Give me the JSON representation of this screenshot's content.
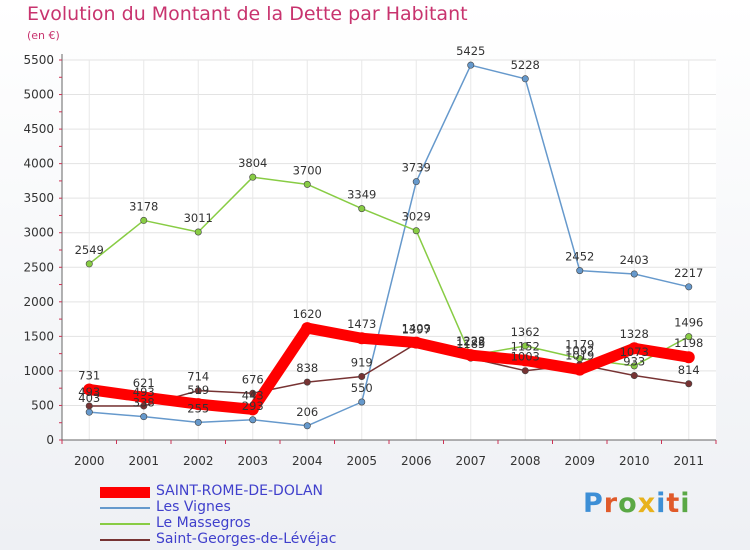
{
  "header": {
    "title": "Evolution du Montant de la Dette par Habitant",
    "subtitle": "(en €)"
  },
  "chart_data": {
    "type": "line",
    "title": "Evolution du Montant de la Dette par Habitant",
    "subtitle": "(en €)",
    "categories": [
      "2000",
      "2001",
      "2002",
      "2003",
      "2004",
      "2005",
      "2006",
      "2007",
      "2008",
      "2009",
      "2010",
      "2011"
    ],
    "ylim": [
      0,
      5500
    ],
    "yticks": [
      0,
      500,
      1000,
      1500,
      2000,
      2500,
      3000,
      3500,
      4000,
      4500,
      5000,
      5500
    ],
    "grid": true,
    "legend_position": "bottom-left",
    "series": [
      {
        "name": "SAINT-ROME-DE-DOLAN",
        "color": "#ff0000",
        "values": [
          731,
          621,
          519,
          443,
          1620,
          1473,
          1409,
          1228,
          1152,
          1019,
          1328,
          1198
        ]
      },
      {
        "name": "Les Vignes",
        "color": "#6699cc",
        "values": [
          403,
          338,
          255,
          293,
          206,
          550,
          3739,
          5425,
          5228,
          2452,
          2403,
          2217
        ]
      },
      {
        "name": "Le Massegros",
        "color": "#88cc44",
        "values": [
          2549,
          3178,
          3011,
          3804,
          3700,
          3349,
          3029,
          1222,
          1362,
          1179,
          1073,
          1496
        ]
      },
      {
        "name": "Saint-Georges-de-Lévéjac",
        "color": "#773333",
        "values": [
          493,
          493,
          714,
          676,
          838,
          919,
          1397,
          1185,
          1003,
          1092,
          933,
          814
        ]
      }
    ]
  },
  "legend": {
    "items": [
      {
        "label": "SAINT-ROME-DE-DOLAN"
      },
      {
        "label": "Les Vignes"
      },
      {
        "label": "Le Massegros"
      },
      {
        "label": "Saint-Georges-de-Lévéjac"
      }
    ]
  },
  "logo": {
    "text": "Proxiti",
    "colors": [
      "#3d8fd6",
      "#e05a2a",
      "#5aa845",
      "#e8b21c",
      "#3d8fd6",
      "#e05a2a",
      "#5aa845"
    ]
  }
}
